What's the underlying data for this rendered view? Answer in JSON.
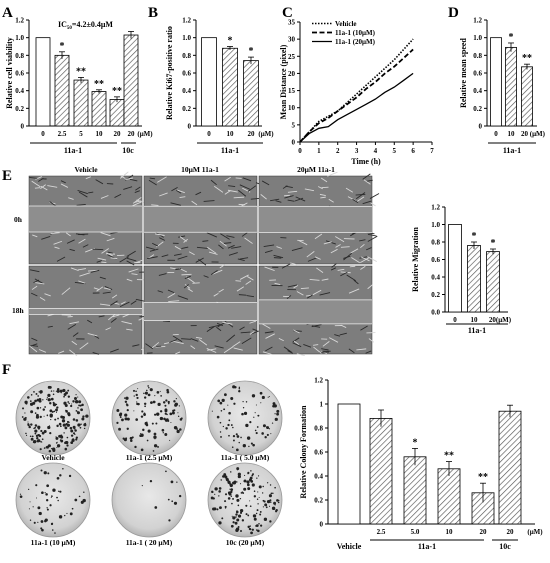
{
  "panels": {
    "a": "A",
    "b": "B",
    "c": "C",
    "d": "D",
    "e": "E",
    "f": "F"
  },
  "ic50_label": "IC50=4.2±0.4μM",
  "group": {
    "compound": "11a-1",
    "control": "10c",
    "vehicle": "Vehicle",
    "unit": "(μM)"
  },
  "micrographs": {
    "columns": [
      "Vehicle",
      "10μM 11a-1",
      "20μM 11a-1"
    ],
    "rows": [
      "0h",
      "18h"
    ]
  },
  "colonies": {
    "labels": [
      "Vehicle",
      "11a-1 (2.5 μM)",
      "11a-1 ( 5.0 μM)",
      "11a-1 (10 μM)",
      "11a-1 ( 20 μM)",
      "10c (20 μM)"
    ],
    "density": [
      0.9,
      0.55,
      0.35,
      0.25,
      0.05,
      0.7
    ]
  },
  "chart_data": [
    {
      "id": "A",
      "type": "bar",
      "ylabel": "Relative cell viability",
      "ylim": [
        0,
        1.2
      ],
      "yticks": [
        "0",
        "0.2",
        "0.4",
        "0.6",
        "0.8",
        "1.0",
        "1.2"
      ],
      "categories": [
        "0",
        "2.5",
        "5",
        "10",
        "20",
        "20"
      ],
      "unit": "(μM)",
      "values": [
        1.0,
        0.8,
        0.52,
        0.39,
        0.3,
        1.03
      ],
      "errors": [
        0.0,
        0.04,
        0.03,
        0.02,
        0.03,
        0.04
      ],
      "sig": [
        "",
        "*",
        "**",
        "**",
        "**",
        ""
      ]
    },
    {
      "id": "B",
      "type": "bar",
      "ylabel": "Relative Ki67-positive ratio",
      "ylim": [
        0,
        1.2
      ],
      "yticks": [
        "0",
        "0.2",
        "0.4",
        "0.6",
        "0.8",
        "1.0",
        "1.2"
      ],
      "categories": [
        "0",
        "10",
        "20"
      ],
      "unit": "(μM)",
      "values": [
        1.0,
        0.88,
        0.74
      ],
      "errors": [
        0.0,
        0.02,
        0.04
      ],
      "sig": [
        "",
        "*",
        "*"
      ]
    },
    {
      "id": "C",
      "type": "line",
      "xlabel": "Time (h)",
      "ylabel": "Mean Distance (pixel)",
      "xlim": [
        0,
        7
      ],
      "ylim": [
        0,
        35
      ],
      "xticks": [
        "0",
        "1",
        "2",
        "3",
        "4",
        "5",
        "6",
        "7"
      ],
      "yticks": [
        "0",
        "5",
        "10",
        "15",
        "20",
        "25",
        "30",
        "35"
      ],
      "series": [
        {
          "name": "Vehicle",
          "x": [
            0,
            0.5,
            1,
            1.5,
            2,
            2.5,
            3,
            3.5,
            4,
            4.5,
            5,
            5.5,
            6
          ],
          "y": [
            0,
            3,
            6,
            7.5,
            9,
            11.5,
            14,
            16.5,
            19,
            21.5,
            24,
            27,
            30
          ]
        },
        {
          "name": "11a-1 (10μM)",
          "x": [
            0,
            0.5,
            1,
            1.5,
            2,
            2.5,
            3,
            3.5,
            4,
            4.5,
            5,
            5.5,
            6
          ],
          "y": [
            0,
            3,
            5.5,
            7,
            9,
            11,
            13,
            15.5,
            17.5,
            20,
            22,
            24.5,
            27
          ]
        },
        {
          "name": "11a-1 (20μM)",
          "x": [
            0,
            0.5,
            1,
            1.5,
            2,
            2.5,
            3,
            3.5,
            4,
            4.5,
            5,
            5.5,
            6
          ],
          "y": [
            0,
            2.5,
            4,
            4.5,
            6.5,
            8,
            9.5,
            11,
            12.5,
            14.5,
            16,
            18,
            20
          ]
        }
      ]
    },
    {
      "id": "D",
      "type": "bar",
      "ylabel": "Relative mean speed",
      "ylim": [
        0,
        1.2
      ],
      "yticks": [
        "0",
        "0.2",
        "0.4",
        "0.6",
        "0.8",
        "1.0",
        "1.2"
      ],
      "categories": [
        "0",
        "10",
        "20"
      ],
      "unit": "(μM)",
      "values": [
        1.0,
        0.89,
        0.67
      ],
      "errors": [
        0.0,
        0.05,
        0.03
      ],
      "sig": [
        "",
        "*",
        "**"
      ]
    },
    {
      "id": "E",
      "type": "bar",
      "ylabel": "Relative Migration",
      "ylim": [
        0,
        1.2
      ],
      "yticks": [
        "0.0",
        "0.2",
        "0.4",
        "0.6",
        "0.8",
        "1.0",
        "1.2"
      ],
      "categories": [
        "0",
        "10",
        "20"
      ],
      "unit": "(μM)",
      "values": [
        1.0,
        0.76,
        0.69
      ],
      "errors": [
        0.0,
        0.04,
        0.03
      ],
      "sig": [
        "",
        "*",
        "*"
      ]
    },
    {
      "id": "F",
      "type": "bar",
      "ylabel": "Relative Colony Formation",
      "ylim": [
        0,
        1.2
      ],
      "yticks": [
        "0",
        "0.2",
        "0.4",
        "0.6",
        "0.8",
        "1",
        "1.2"
      ],
      "categories": [
        "",
        "2.5",
        "5.0",
        "10",
        "20",
        "20"
      ],
      "unit": "(μM)",
      "values": [
        1.0,
        0.88,
        0.56,
        0.46,
        0.26,
        0.94
      ],
      "errors": [
        0.0,
        0.07,
        0.07,
        0.06,
        0.08,
        0.05
      ],
      "sig": [
        "",
        "",
        "*",
        "**",
        "**",
        ""
      ]
    }
  ]
}
